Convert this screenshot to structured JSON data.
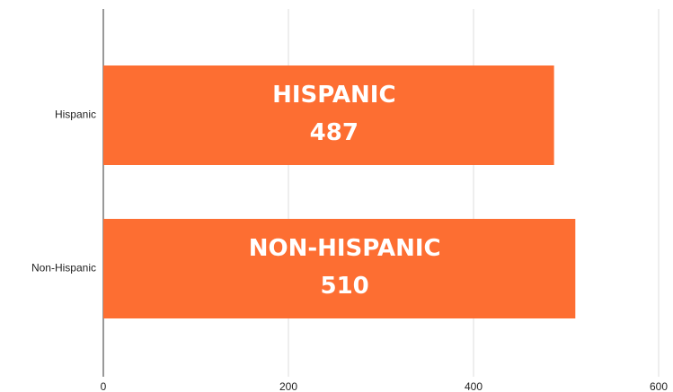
{
  "chart_data": {
    "type": "hbar",
    "categories": [
      "Hispanic",
      "Non-Hispanic"
    ],
    "values": [
      487,
      510
    ],
    "bar_labels": [
      "HISPANIC",
      "NON-HISPANIC"
    ],
    "color": "#fd6e32",
    "xlim": [
      0,
      600
    ],
    "xticks": [
      0,
      200,
      400,
      600
    ],
    "grid": true
  }
}
